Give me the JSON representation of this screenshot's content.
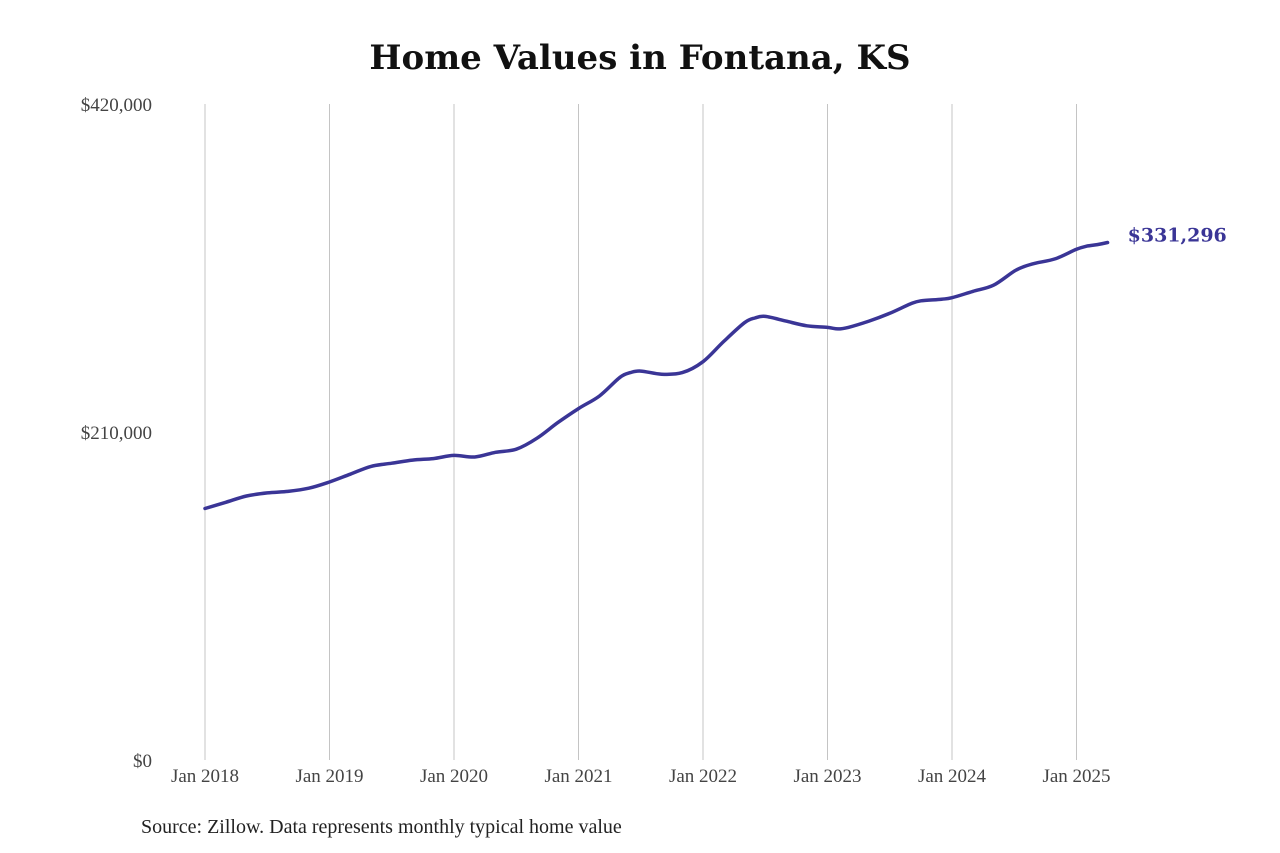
{
  "chart_data": {
    "type": "line",
    "title": "Home Values in Fontana, KS",
    "xlabel": "",
    "ylabel": "",
    "ylim": [
      0,
      420000
    ],
    "y_ticks": [
      0,
      210000,
      420000
    ],
    "y_tick_labels": [
      "$0",
      "$210,000",
      "$420,000"
    ],
    "x_ticks": [
      "2018-01",
      "2019-01",
      "2020-01",
      "2021-01",
      "2022-01",
      "2023-01",
      "2024-01",
      "2025-01"
    ],
    "x_tick_labels": [
      "Jan 2018",
      "Jan 2019",
      "Jan 2020",
      "Jan 2021",
      "Jan 2022",
      "Jan 2023",
      "Jan 2024",
      "Jan 2025"
    ],
    "grid": "vertical",
    "line_color": "#3a3596",
    "series": [
      {
        "x": [
          "2018-01",
          "2018-03",
          "2018-05",
          "2018-07",
          "2018-09",
          "2018-11",
          "2019-01",
          "2019-03",
          "2019-05",
          "2019-07",
          "2019-09",
          "2019-11",
          "2020-01",
          "2020-03",
          "2020-05",
          "2020-07",
          "2020-09",
          "2020-11",
          "2021-01",
          "2021-03",
          "2021-05",
          "2021-06",
          "2021-07",
          "2021-09",
          "2021-11",
          "2022-01",
          "2022-03",
          "2022-05",
          "2022-06",
          "2022-07",
          "2022-09",
          "2022-11",
          "2023-01",
          "2023-02",
          "2023-03",
          "2023-05",
          "2023-07",
          "2023-09",
          "2023-10",
          "2023-12",
          "2024-01",
          "2024-03",
          "2024-05",
          "2024-07",
          "2024-08",
          "2024-09",
          "2024-11",
          "2025-01",
          "2025-02",
          "2025-03",
          "2025-04"
        ],
        "values": [
          161000,
          165000,
          169000,
          171000,
          172000,
          174000,
          178000,
          183000,
          188000,
          190000,
          192000,
          193000,
          195000,
          194000,
          197000,
          199000,
          206000,
          216000,
          225000,
          233000,
          245000,
          248000,
          249000,
          247000,
          248000,
          255000,
          268000,
          280000,
          283000,
          284000,
          281000,
          278000,
          277000,
          276000,
          277000,
          281000,
          286000,
          292000,
          294000,
          295000,
          296000,
          300000,
          304000,
          313000,
          316000,
          318000,
          321000,
          327000,
          329000,
          330000,
          331296
        ]
      }
    ],
    "end_label": "$331,296",
    "source": "Source: Zillow. Data represents monthly typical home value"
  }
}
